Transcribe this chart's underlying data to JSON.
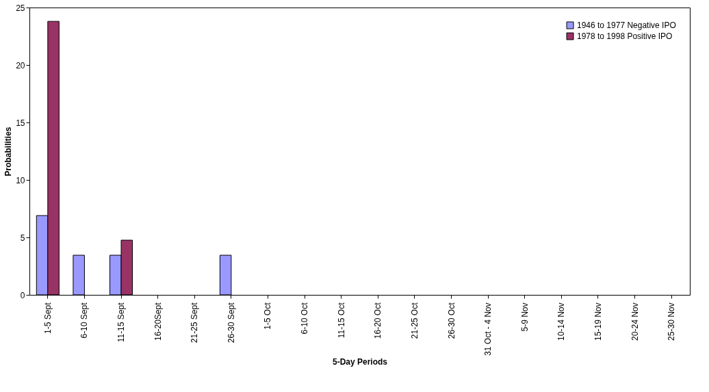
{
  "chart_data": {
    "type": "bar",
    "xlabel": "5-Day Periods",
    "ylabel": "Probabilities",
    "categories": [
      "1-5 Sept",
      "6-10 Sept",
      "11-15 Sept",
      "16-20Sept",
      "21-25 Sept",
      "26-30 Sept",
      "1-5 Oct",
      "6-10 Oct",
      "11-15 Oct",
      "16-20 Oct",
      "21-25 Oct",
      "26-30 Oct",
      "31 Oct - 4 Nov",
      "5-9 Nov",
      "10-14 Nov",
      "15-19 Nov",
      "20-24 Nov",
      "25-30 Nov"
    ],
    "series": [
      {
        "name": "1946 to 1977 Negative IPO",
        "color": "#9999ff",
        "values": [
          6.9,
          3.45,
          3.45,
          null,
          null,
          3.45,
          null,
          null,
          null,
          null,
          null,
          null,
          null,
          null,
          null,
          null,
          null,
          null
        ]
      },
      {
        "name": "1978 to 1998 Positive IPO",
        "color": "#993366",
        "values": [
          23.8,
          null,
          4.76,
          null,
          null,
          null,
          null,
          null,
          null,
          null,
          null,
          null,
          null,
          null,
          null,
          null,
          null,
          null
        ]
      }
    ],
    "ylim": [
      0,
      25
    ],
    "yticks": [
      0,
      5,
      10,
      15,
      20,
      25
    ],
    "grid": false,
    "legend": "top right"
  }
}
